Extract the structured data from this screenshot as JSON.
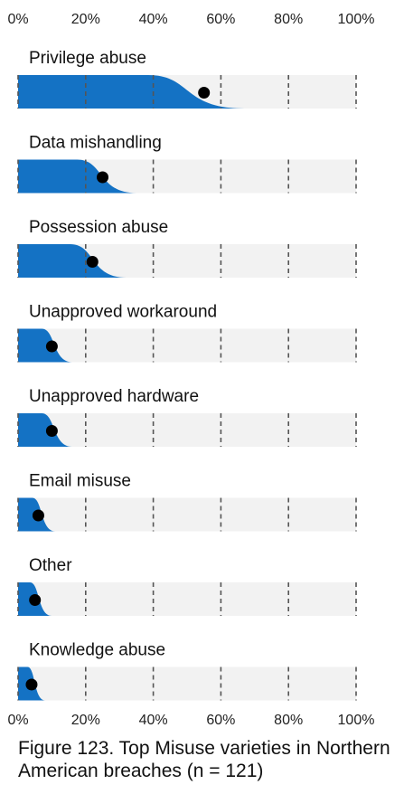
{
  "chart_data": {
    "type": "distribution-dot",
    "x_ticks": [
      "0%",
      "20%",
      "40%",
      "60%",
      "80%",
      "100%"
    ],
    "xlim": [
      0,
      100
    ],
    "colors": {
      "fill": "#1472c4",
      "track": "#f2f2f2",
      "grid": "#555555",
      "dot": "#000000"
    },
    "series": [
      {
        "name": "Privilege abuse",
        "value": 55,
        "spread_end": 67
      },
      {
        "name": "Data mishandling",
        "value": 25,
        "spread_end": 35
      },
      {
        "name": "Possession abuse",
        "value": 22,
        "spread_end": 32
      },
      {
        "name": "Unapproved workaround",
        "value": 10,
        "spread_end": 16
      },
      {
        "name": "Unapproved hardware",
        "value": 10,
        "spread_end": 16
      },
      {
        "name": "Email misuse",
        "value": 6,
        "spread_end": 11
      },
      {
        "name": "Other",
        "value": 5,
        "spread_end": 10
      },
      {
        "name": "Knowledge abuse",
        "value": 4,
        "spread_end": 8
      }
    ]
  },
  "caption": "Figure 123. Top Misuse varieties in Northern American breaches (n = 121)"
}
